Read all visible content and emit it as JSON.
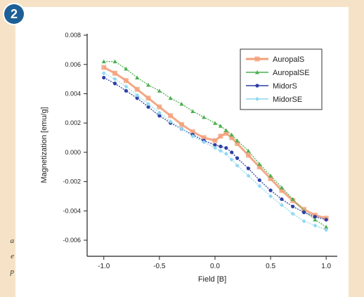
{
  "badge": "2",
  "side_text": [
    "a",
    "e",
    "p"
  ],
  "chart_data": {
    "type": "line",
    "title": "",
    "xlabel": "Field [B]",
    "ylabel": "Magnetization [emu/g]",
    "xlim": [
      -1.15,
      1.1
    ],
    "ylim": [
      -0.0071,
      0.0081
    ],
    "xticks": [
      -1.0,
      -0.5,
      0.0,
      0.5,
      1.0
    ],
    "xtick_labels": [
      "-1.0",
      "-0.5",
      "0.0",
      "0.5",
      "1.0"
    ],
    "yticks": [
      -0.006,
      -0.004,
      -0.002,
      0.0,
      0.002,
      0.004,
      0.006,
      0.008
    ],
    "ytick_labels": [
      "-0.006",
      "-0.004",
      "-0.002",
      "0.000",
      "0.002",
      "0.004",
      "0.006",
      "0.008"
    ],
    "grid": false,
    "legend_position": "top-right",
    "x": [
      -1.0,
      -0.9,
      -0.8,
      -0.7,
      -0.6,
      -0.5,
      -0.4,
      -0.3,
      -0.2,
      -0.1,
      0.0,
      0.05,
      0.1,
      0.15,
      0.2,
      0.3,
      0.4,
      0.5,
      0.6,
      0.7,
      0.8,
      0.9,
      1.0
    ],
    "series": [
      {
        "name": "AuropalS",
        "color": "#f3a07a",
        "marker": "square",
        "values": [
          0.0058,
          0.0054,
          0.0049,
          0.0043,
          0.0037,
          0.0031,
          0.0025,
          0.0019,
          0.0014,
          0.001,
          0.0008,
          0.0011,
          0.0013,
          0.001,
          0.0006,
          -0.0002,
          -0.001,
          -0.0018,
          -0.0026,
          -0.0033,
          -0.0039,
          -0.0043,
          -0.0045
        ]
      },
      {
        "name": "AuropalSE",
        "color": "#4caf50",
        "marker": "triangle",
        "values": [
          0.0062,
          0.0062,
          0.0057,
          0.0051,
          0.0046,
          0.0042,
          0.0037,
          0.0033,
          0.0028,
          0.0024,
          0.002,
          0.0018,
          0.0015,
          0.0012,
          0.0008,
          0.0001,
          -0.0008,
          -0.0016,
          -0.0024,
          -0.0032,
          -0.004,
          -0.0046,
          -0.0051
        ]
      },
      {
        "name": "MidorS",
        "color": "#2d3fa6",
        "marker": "circle",
        "values": [
          0.0051,
          0.0047,
          0.0042,
          0.0037,
          0.0031,
          0.0025,
          0.002,
          0.0016,
          0.0012,
          0.0008,
          0.0005,
          0.0004,
          0.0003,
          0.0,
          -0.0004,
          -0.0011,
          -0.0019,
          -0.0026,
          -0.0032,
          -0.0037,
          -0.0041,
          -0.0044,
          -0.0046
        ]
      },
      {
        "name": "MidorSE",
        "color": "#8fd8f2",
        "marker": "diamond",
        "values": [
          0.0054,
          0.005,
          0.0045,
          0.0039,
          0.0033,
          0.0027,
          0.0021,
          0.0016,
          0.0011,
          0.0007,
          0.0003,
          0.0001,
          -0.0001,
          -0.0005,
          -0.0009,
          -0.0016,
          -0.0023,
          -0.003,
          -0.0036,
          -0.0042,
          -0.0047,
          -0.005,
          -0.0053
        ]
      }
    ]
  }
}
